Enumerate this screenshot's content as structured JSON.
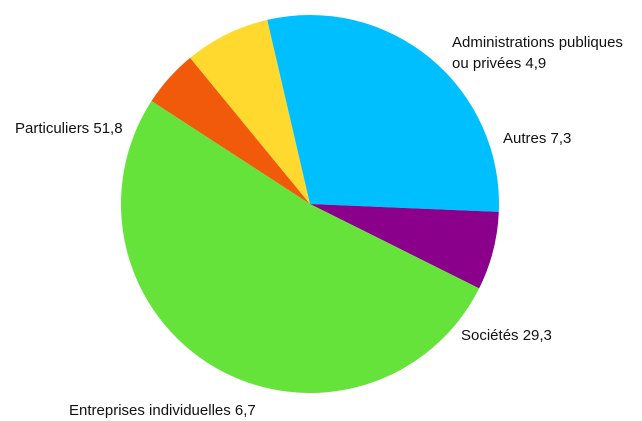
{
  "chart_data": {
    "type": "pie",
    "title": "",
    "slices": [
      {
        "label": "Administrations publiques ou privées",
        "display_lines": [
          "Administrations publiques",
          "ou privées  4,9"
        ],
        "value": 4.9,
        "color": "#F05A0A"
      },
      {
        "label": "Autres",
        "display_lines": [
          "Autres  7,3"
        ],
        "value": 7.3,
        "color": "#FFD92E"
      },
      {
        "label": "Sociétés",
        "display_lines": [
          "Sociétés  29,3"
        ],
        "value": 29.3,
        "color": "#00BFFF"
      },
      {
        "label": "Entreprises individuelles",
        "display_lines": [
          "Entreprises individuelles 6,7"
        ],
        "value": 6.7,
        "color": "#8A008A"
      },
      {
        "label": "Particuliers",
        "display_lines": [
          "Particuliers  51,8"
        ],
        "value": 51.8,
        "color": "#66E33B"
      }
    ]
  }
}
